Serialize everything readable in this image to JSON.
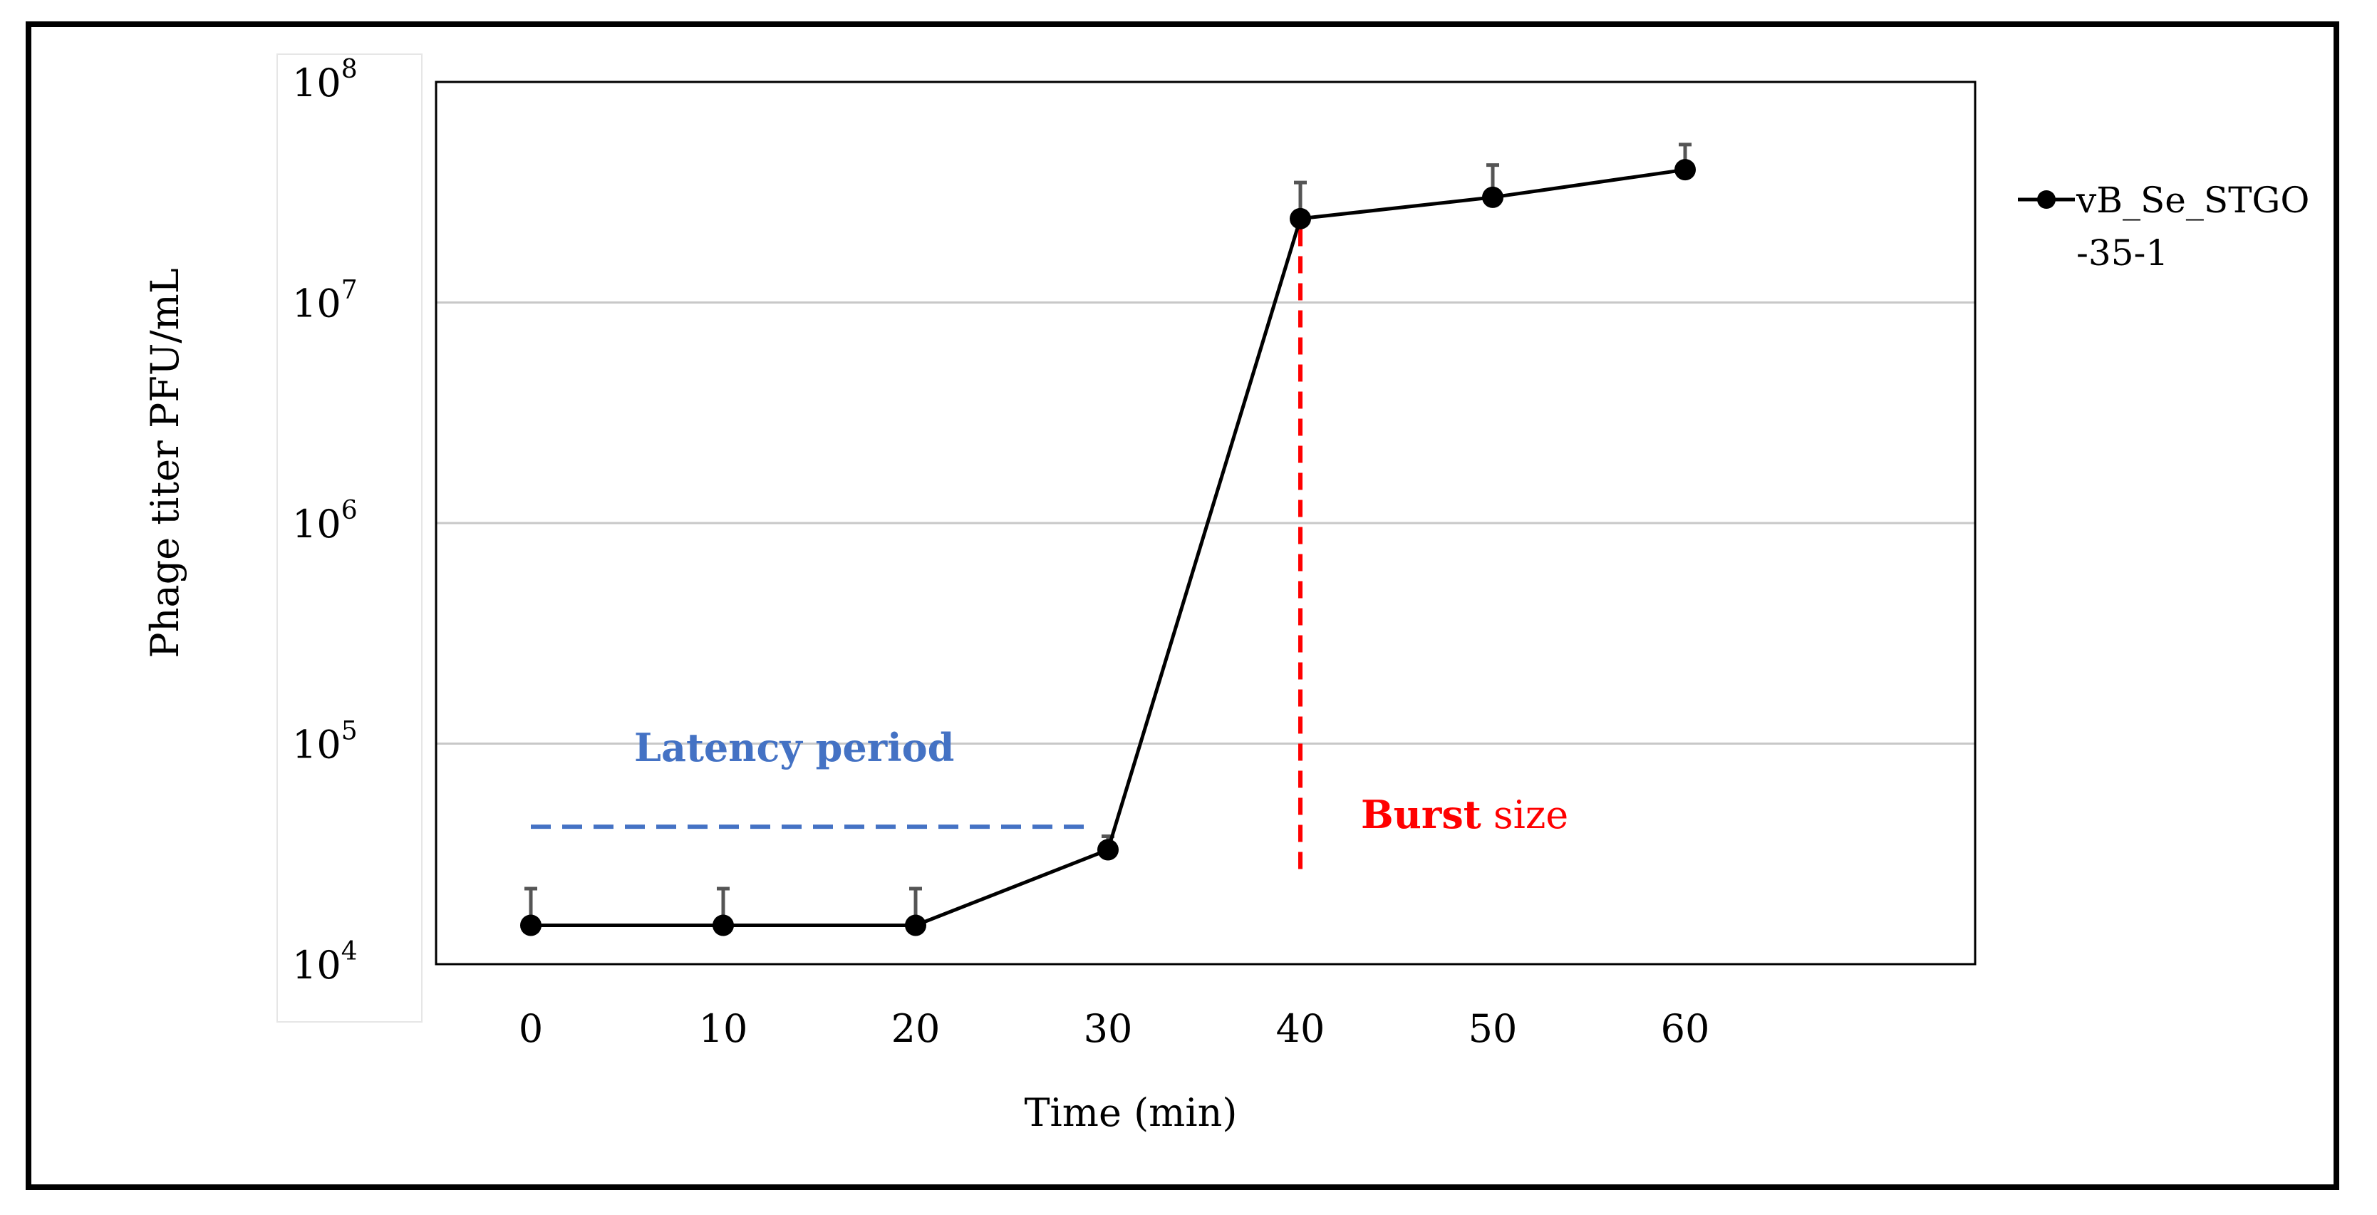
{
  "chart_data": {
    "type": "line",
    "title": "",
    "xlabel": "Time (min)",
    "ylabel": "Phage titer PFU/mL",
    "yscale": "log",
    "ylim": [
      10000,
      100000000
    ],
    "y_tick_labels": [
      {
        "value": 100000000,
        "base": "10",
        "exp": "8"
      },
      {
        "value": 10000000,
        "base": "10",
        "exp": "7"
      },
      {
        "value": 1000000,
        "base": "10",
        "exp": "6"
      },
      {
        "value": 100000,
        "base": "10",
        "exp": "5"
      },
      {
        "value": 10000,
        "base": "10",
        "exp": "4"
      }
    ],
    "grid_lines_at": [
      10000000,
      1000000,
      100000
    ],
    "x_ticks": [
      "0",
      "10",
      "20",
      "30",
      "40",
      "50",
      "60"
    ],
    "x_axis_max": 75,
    "legend": {
      "position": "right",
      "line1": "vB_Se_STGO",
      "line2": "-35-1"
    },
    "series": [
      {
        "name": "vB_Se_STGO-35-1",
        "color": "#000000",
        "x": [
          0,
          10,
          20,
          30,
          40,
          50,
          60
        ],
        "y": [
          15000,
          15000,
          15000,
          33000,
          24000000,
          30000000,
          40000000
        ],
        "error_upper": [
          22000,
          22000,
          22000,
          38000,
          35000000,
          42000000,
          52000000
        ]
      }
    ],
    "annotations": {
      "latency": {
        "text": "Latency period",
        "color": "#4472c4",
        "x_from": 0,
        "x_to": 29,
        "y": 42000
      },
      "burst": {
        "bold": "Burst",
        "rest": " size",
        "color": "#ff0000",
        "x": 40,
        "y_from": 27000,
        "y_to": 24000000
      }
    }
  }
}
